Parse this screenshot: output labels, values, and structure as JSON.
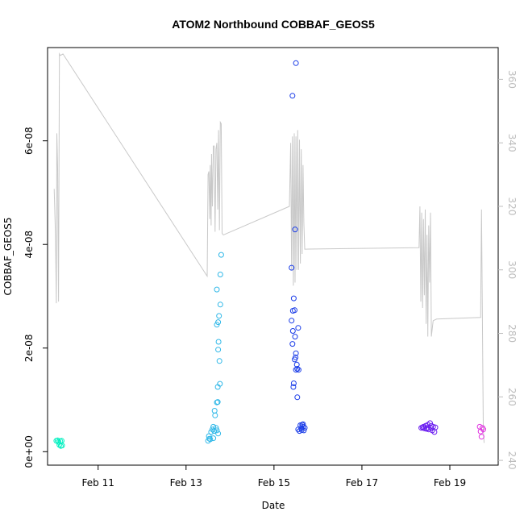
{
  "chart_data": {
    "type": "scatter",
    "title": "ATOM2 Northbound COBBAF_GEOS5",
    "xlabel": "Date",
    "ylabel": "COBBAF_GEOS5",
    "x_ticks": [
      "Feb 11",
      "Feb 13",
      "Feb 15",
      "Feb 17",
      "Feb 19"
    ],
    "x_tick_values": [
      11,
      13,
      15,
      17,
      19
    ],
    "xlim": [
      9.85,
      20.1
    ],
    "y_ticks": [
      "0e+00",
      "2e-08",
      "4e-08",
      "6e-08"
    ],
    "y_tick_values": [
      0,
      2e-08,
      4e-08,
      6e-08
    ],
    "ylim": [
      -2.6e-09,
      7.8e-08
    ],
    "y2_ticks": [
      "240",
      "260",
      "280",
      "300",
      "320",
      "340",
      "360"
    ],
    "y2_tick_values": [
      240,
      260,
      280,
      300,
      320,
      340,
      360
    ],
    "y2lim": [
      238.5,
      370
    ],
    "grid": false,
    "colors": {
      "line": "#c8c8c8",
      "right_axis": "#bdbdbd",
      "groups": [
        "#00f0c0",
        "#30b8e8",
        "#1a3ce8",
        "#6a1cf0",
        "#e030e0"
      ]
    },
    "series": [
      {
        "points": [
          [
            10.05,
            2.1e-09
          ],
          [
            10.08,
            2.2e-09
          ],
          [
            10.1,
            1.9e-09
          ],
          [
            10.12,
            1.3e-09
          ],
          [
            10.14,
            2e-09
          ],
          [
            10.15,
            1.1e-09
          ],
          [
            10.17,
            2.1e-09
          ],
          [
            10.18,
            1.2e-09
          ]
        ]
      },
      {
        "points": [
          [
            13.5,
            2.1e-09
          ],
          [
            13.52,
            3e-09
          ],
          [
            13.53,
            2.5e-09
          ],
          [
            13.55,
            2.4e-09
          ],
          [
            13.57,
            3.8e-09
          ],
          [
            13.6,
            4.3e-09
          ],
          [
            13.62,
            4.8e-09
          ],
          [
            13.64,
            4e-09
          ],
          [
            13.66,
            7e-09
          ],
          [
            13.65,
            7.9e-09
          ],
          [
            13.68,
            4.6e-09
          ],
          [
            13.7,
            4.1e-09
          ],
          [
            13.7,
            9.5e-09
          ],
          [
            13.72,
            9.6e-09
          ],
          [
            13.73,
            3.5e-09
          ],
          [
            13.72,
            1.25e-08
          ],
          [
            13.7,
            2.45e-08
          ],
          [
            13.73,
            2.5e-08
          ],
          [
            13.75,
            2.62e-08
          ],
          [
            13.78,
            2.84e-08
          ],
          [
            13.74,
            2.12e-08
          ],
          [
            13.73,
            1.97e-08
          ],
          [
            13.76,
            1.75e-08
          ],
          [
            13.77,
            1.31e-08
          ],
          [
            13.7,
            3.13e-08
          ],
          [
            13.78,
            3.42e-08
          ],
          [
            13.8,
            3.8e-08
          ],
          [
            13.62,
            2.6e-09
          ]
        ]
      },
      {
        "points": [
          [
            15.5,
            7.5e-08
          ],
          [
            15.42,
            6.87e-08
          ],
          [
            15.48,
            4.29e-08
          ],
          [
            15.4,
            3.55e-08
          ],
          [
            15.45,
            2.96e-08
          ],
          [
            15.43,
            2.72e-08
          ],
          [
            15.47,
            2.73e-08
          ],
          [
            15.4,
            2.53e-08
          ],
          [
            15.55,
            2.39e-08
          ],
          [
            15.43,
            2.33e-08
          ],
          [
            15.48,
            2.22e-08
          ],
          [
            15.42,
            2.08e-08
          ],
          [
            15.5,
            1.9e-08
          ],
          [
            15.49,
            1.82e-08
          ],
          [
            15.47,
            1.78e-08
          ],
          [
            15.52,
            1.68e-08
          ],
          [
            15.53,
            1.6e-08
          ],
          [
            15.5,
            1.58e-08
          ],
          [
            15.56,
            1.58e-08
          ],
          [
            15.45,
            1.32e-08
          ],
          [
            15.44,
            1.25e-08
          ],
          [
            15.53,
            1.05e-08
          ],
          [
            15.55,
            4.3e-09
          ],
          [
            15.6,
            5.1e-09
          ],
          [
            15.62,
            4.5e-09
          ],
          [
            15.64,
            5.2e-09
          ],
          [
            15.66,
            4.8e-09
          ],
          [
            15.68,
            4.1e-09
          ],
          [
            15.7,
            4.6e-09
          ],
          [
            15.63,
            4.2e-09
          ],
          [
            15.58,
            4e-09
          ],
          [
            15.66,
            5.3e-09
          ]
        ]
      },
      {
        "points": [
          [
            18.35,
            4.6e-09
          ],
          [
            18.38,
            4.7e-09
          ],
          [
            18.4,
            4.8e-09
          ],
          [
            18.42,
            4.5e-09
          ],
          [
            18.45,
            5e-09
          ],
          [
            18.47,
            4.4e-09
          ],
          [
            18.5,
            5.2e-09
          ],
          [
            18.52,
            4.3e-09
          ],
          [
            18.55,
            5.5e-09
          ],
          [
            18.57,
            4.6e-09
          ],
          [
            18.6,
            4.1e-09
          ],
          [
            18.62,
            4.8e-09
          ],
          [
            18.65,
            3.8e-09
          ],
          [
            18.67,
            4.7e-09
          ],
          [
            18.48,
            4.6e-09
          ],
          [
            18.58,
            5e-09
          ]
        ]
      },
      {
        "points": [
          [
            19.68,
            4.8e-09
          ],
          [
            19.7,
            3.9e-09
          ],
          [
            19.72,
            2.9e-09
          ],
          [
            19.74,
            4.6e-09
          ],
          [
            19.76,
            4.3e-09
          ]
        ]
      }
    ],
    "line_y2": [
      [
        10.0,
        325.5
      ],
      [
        10.03,
        311.0
      ],
      [
        10.05,
        289.5
      ],
      [
        10.06,
        343.0
      ],
      [
        10.08,
        332.0
      ],
      [
        10.1,
        290.0
      ],
      [
        10.12,
        368.0
      ],
      [
        10.14,
        367.5
      ],
      [
        10.2,
        368.0
      ],
      [
        13.48,
        298.0
      ],
      [
        13.5,
        330.0
      ],
      [
        13.52,
        331.0
      ],
      [
        13.54,
        316.0
      ],
      [
        13.55,
        333.0
      ],
      [
        13.57,
        314.0
      ],
      [
        13.58,
        336.5
      ],
      [
        13.6,
        320.0
      ],
      [
        13.62,
        339.0
      ],
      [
        13.64,
        339.0
      ],
      [
        13.66,
        312.0
      ],
      [
        13.68,
        338.0
      ],
      [
        13.7,
        340.0
      ],
      [
        13.72,
        319.0
      ],
      [
        13.74,
        344.0
      ],
      [
        13.76,
        312.5
      ],
      [
        13.78,
        346.5
      ],
      [
        13.8,
        346.0
      ],
      [
        13.82,
        311.5
      ],
      [
        13.85,
        311.0
      ],
      [
        15.35,
        320.0
      ],
      [
        15.38,
        340.0
      ],
      [
        15.4,
        300.0
      ],
      [
        15.42,
        342.0
      ],
      [
        15.44,
        295.0
      ],
      [
        15.46,
        343.0
      ],
      [
        15.48,
        296.0
      ],
      [
        15.5,
        342.0
      ],
      [
        15.52,
        300.0
      ],
      [
        15.54,
        344.0
      ],
      [
        15.56,
        300.0
      ],
      [
        15.58,
        341.0
      ],
      [
        15.6,
        302.0
      ],
      [
        15.62,
        338.0
      ],
      [
        15.64,
        305.0
      ],
      [
        15.66,
        333.0
      ],
      [
        15.68,
        315.0
      ],
      [
        15.7,
        306.5
      ],
      [
        18.3,
        307.0
      ],
      [
        18.32,
        320.0
      ],
      [
        18.34,
        290.0
      ],
      [
        18.36,
        318.0
      ],
      [
        18.38,
        288.0
      ],
      [
        18.4,
        316.0
      ],
      [
        18.42,
        292.0
      ],
      [
        18.44,
        319.0
      ],
      [
        18.46,
        283.0
      ],
      [
        18.48,
        311.0
      ],
      [
        18.5,
        279.0
      ],
      [
        18.52,
        314.0
      ],
      [
        18.54,
        296.0
      ],
      [
        18.56,
        318.0
      ],
      [
        18.58,
        279.0
      ],
      [
        18.62,
        284.0
      ],
      [
        18.7,
        284.5
      ],
      [
        19.7,
        285.0
      ],
      [
        19.72,
        319.0
      ],
      [
        19.76,
        250.0
      ],
      [
        19.78,
        245.5
      ]
    ]
  }
}
